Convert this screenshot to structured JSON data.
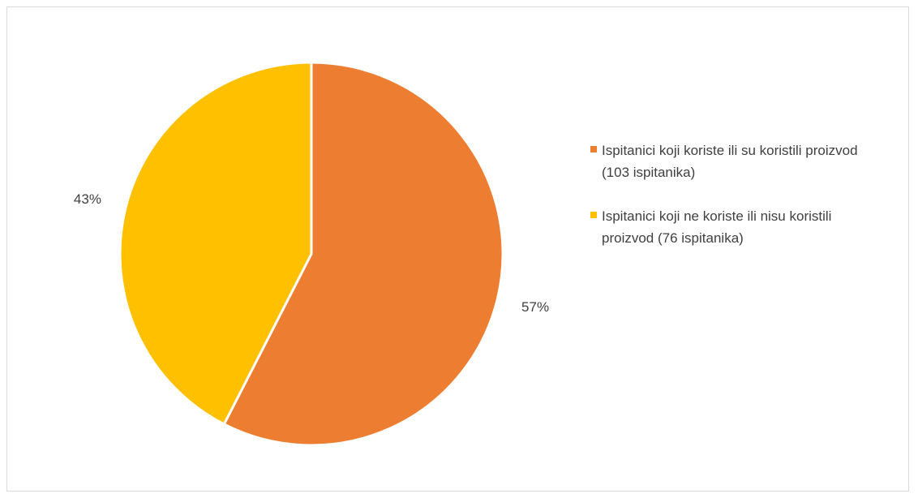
{
  "chart_data": {
    "type": "pie",
    "title": "",
    "slices": [
      {
        "label": "Ispitanici koji koriste ili su koristili proizvod (103 ispitanika)",
        "value": 103,
        "percent_label": "57%",
        "color": "#ED7D31"
      },
      {
        "label": "Ispitanici koji ne koriste ili nisu koristili proizvod (76 ispitanika)",
        "value": 76,
        "percent_label": "43%",
        "color": "#FFC000"
      }
    ],
    "legend_position": "right"
  }
}
